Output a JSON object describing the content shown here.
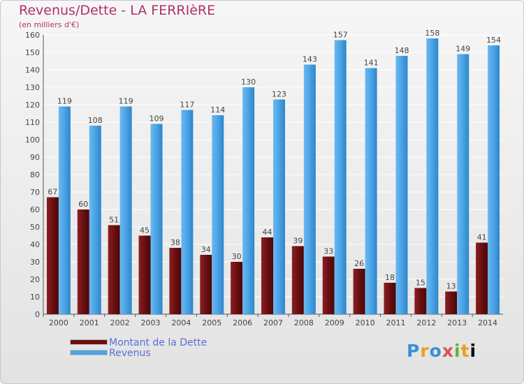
{
  "title": "Revenus/Dette - LA FERRIèRE",
  "subtitle": "(en milliers d'€)",
  "logo": "Proxiti",
  "colors": {
    "dette": "#6b0f10",
    "revenus": "#4aa3e6",
    "axis_text": "#444444",
    "grid": "#ffffff"
  },
  "chart_data": {
    "type": "bar",
    "title": "Revenus/Dette - LA FERRIèRE",
    "subtitle": "(en milliers d'€)",
    "categories": [
      "2000",
      "2001",
      "2002",
      "2003",
      "2004",
      "2005",
      "2006",
      "2007",
      "2008",
      "2009",
      "2010",
      "2011",
      "2012",
      "2013",
      "2014"
    ],
    "series": [
      {
        "name": "Montant de la Dette",
        "color": "#6b0f10",
        "values": [
          67,
          60,
          51,
          45,
          38,
          34,
          30,
          44,
          39,
          33,
          26,
          18,
          15,
          13,
          41
        ]
      },
      {
        "name": "Revenus",
        "color": "#4aa3e6",
        "values": [
          119,
          108,
          119,
          109,
          117,
          114,
          130,
          123,
          143,
          157,
          141,
          148,
          158,
          149,
          154
        ]
      }
    ],
    "ylim": [
      0,
      160
    ],
    "yticks": [
      0,
      10,
      20,
      30,
      40,
      50,
      60,
      70,
      80,
      90,
      100,
      110,
      120,
      130,
      140,
      150,
      160
    ],
    "grid": true,
    "legend_position": "bottom-left"
  }
}
